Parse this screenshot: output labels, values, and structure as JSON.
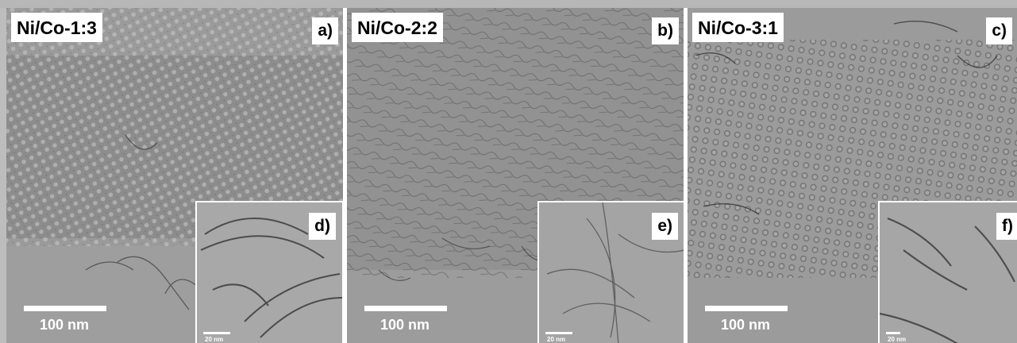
{
  "panels": [
    {
      "sample": "Ni/Co-1:3",
      "letter": "a)",
      "scale": "100 nm",
      "inset": {
        "letter": "d)",
        "scale": "20 nm"
      }
    },
    {
      "sample": "Ni/Co-2:2",
      "letter": "b)",
      "scale": "100 nm",
      "inset": {
        "letter": "e)",
        "scale": "20 nm"
      }
    },
    {
      "sample": "Ni/Co-3:1",
      "letter": "c)",
      "scale": "100 nm",
      "inset": {
        "letter": "f)",
        "scale": "20 nm"
      }
    }
  ],
  "colors": {
    "image_gray": "#8f8f8f",
    "label_background": "#ffffff",
    "scalebar": "#ffffff"
  }
}
